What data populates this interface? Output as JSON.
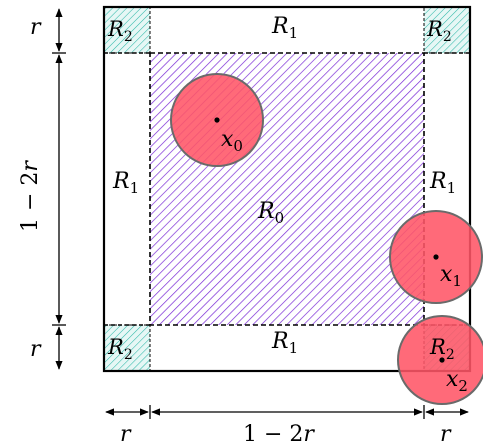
{
  "regions": {
    "r0_label": "R",
    "r0_sub": "0",
    "r1_label": "R",
    "r1_sub": "1",
    "r2_label": "R",
    "r2_sub": "2"
  },
  "points": [
    {
      "label": "x",
      "sub": "0"
    },
    {
      "label": "x",
      "sub": "1"
    },
    {
      "label": "x",
      "sub": "2"
    }
  ],
  "dimensions": {
    "r": "r",
    "span_prefix": "1 − 2",
    "span_var": "r"
  },
  "colors": {
    "outer_border": "#000000",
    "inner_fill_hatch": "#7a2bd6",
    "corner_hatch": "#2fb8a8",
    "corner_fill": "#e6f7f5",
    "circle_fill": "#ff5566",
    "circle_stroke": "#6a6a6a"
  }
}
